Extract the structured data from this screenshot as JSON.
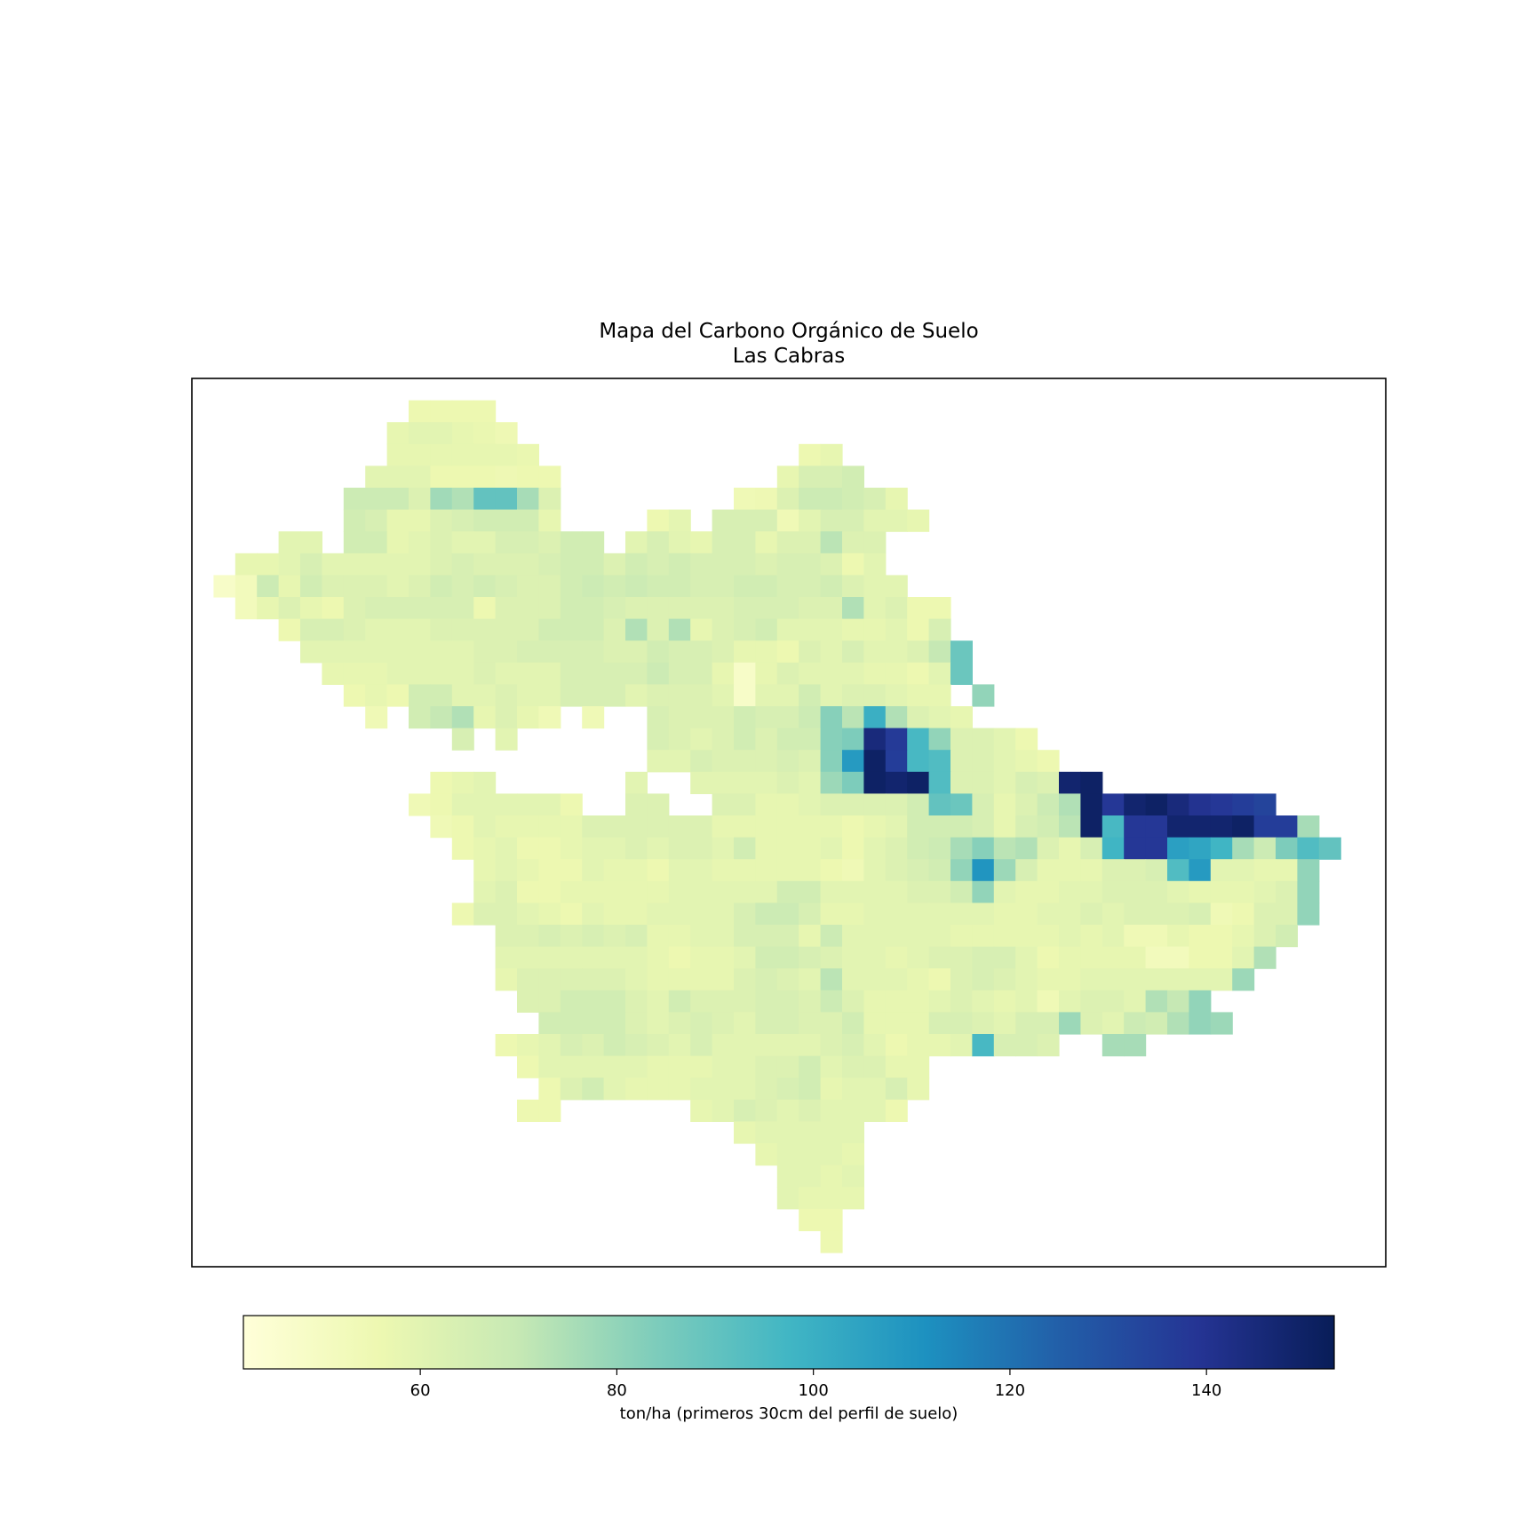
{
  "chart_data": {
    "type": "heatmap",
    "title": "Mapa del Carbono Orgánico de Suelo",
    "subtitle": "Las Cabras",
    "xlabel": "",
    "ylabel": "",
    "colormap": "YlGnBu",
    "colorbar": {
      "label": "ton/ha (primeros 30cm del perfil de suelo)",
      "orientation": "horizontal",
      "placement": "bottom",
      "range": [
        42,
        153
      ],
      "ticks": [
        60,
        80,
        100,
        120,
        140
      ],
      "tick_labels": [
        "60",
        "80",
        "100",
        "120",
        "140"
      ]
    },
    "grid": false,
    "nodata": "blank",
    "grid_shape": [
      40,
      53
    ],
    "rows": [
      "    .    .    .    .    .    .    .    .    .    .    .    .    .    .    .    .    .    .    .    .    .    .    .    .    .    .    .    .    .    .    .    .    .    .    .    .    .    .    .    .    .    .    .    .    .    .    .    .    .    .    .    .    .",
      "    .    .    .    .    .    .    .    .    .    .   56   56   56   56    .    .    .    .    .    .    .    .    .    .    .    .    .    .    .    .    .    .    .    .    .    .    .    .    .    .    .    .    .    .    .    .    .    .    .    .    .    .    .",
      "    .    .    .    .    .    .    .    .    .   58   60   60   58   57   55    .    .    .    .    .    .    .    .    .    .    .    .    .    .    .    .    .    .    .    .    .    .    .    .    .    .    .    .    .    .    .    .    .    .    .    .    .    .",
      "    .    .    .    .    .    .    .    .    .   58   58   58   58   58   58   57    .    .    .    .    .    .    .    .    .    .    .    .   56   58    .    .    .    .    .    .    .    .    .    .    .    .    .    .    .    .    .    .    .    .    .    .    .",
      "    .    .    .    .    .    .    .    .   60   60   60   56   56   56   55   56   56    .    .    .    .    .    .    .    .    .    .   58   64   64   66    .    .    .    .    .    .    .    .    .    .    .    .    .    .    .    .    .    .    .    .    .    .",
      "    .    .    .    .    .    .    .    68   68   68   62   77   74   90   90   76   62    .    .    .    .    .    .    .    .   54   55   62   68   68   66   64   58    .    .    .    .    .    .    .    .    .    .    .    .    .    .    .    .    .    .    .    .",
      "    .    .    .    .    .    .    .   66   64   58   58   62   64   66   66   66   58    .    .    .    .   56   59    .   64   64   64   54   60   64   64   60   60   58    .    .    .    .    .    .    .    .    .    .    .    .    .    .    .    .    .    .    .",
      "    .    .    .    .   60   60    .   66   66   58   60   62   60   60   64   64   62   66   66    .   60   64   60   58   64   64   58   62   62   72   62   62    .    .    .    .    .    .    .    .    .    .    .    .    .    .    .    .    .    .    .    .    .",
      "    .    .   58   58   60   64   60   60   60   60   60   62   64   62   62   62   64   66   66   62   66   64   66   64   64   64   62   64   64   62   56   60    .    .    .    .    .    .    .    .    .    .    .    .    .    .    .    .    .    .    .    .    .",
      "    .   48   52   68   58   66   62   62   62   60   62   66   64   66   64   62   62   66   68   66   68   66   66   64   64   66   66   64   64   66   62   60   60    .    .    .    .    .    .    .    .    .    .    .    .    .    .    .    .    .    .    .    .",
      "    .    .   52   58   62   58   56   62   64   64   64   64   64   56   62   62   62   66   66   64   62   62   62   62   62   64   64   64   62   62   74   60   62   56   56    .    .    .    .    .    .    .    .    .    .    .    .    .    .    .    .    .    .",
      "    .    .    .    .   56   64   64   62   60   60   60   62   62   62   62   62   66   66   66   62   74   62   74   58   62   64   66   60   60   60   58   58   60   56   64    .    .    .    .    .    .    .    .    .    .    .    .    .    .    .    .    .    .",
      "    .    .    .    .    .   60   60   60   60   60   60   60   60   62   62   64   64   64   64   62   62   66   64   64   62   58   58   56   62   60   64   60   60   62   70   88    .    .    .    .    .    .    .    .    .    .    .    .    .    .    .    .    .",
      "    .    .    .    .    .    .   58   58   58   60   60   60   60   62   60   60   60   64   64   64   64   68   64   64   58   48   58   62   60   60   60   58   58   56   60   88    .    .    .    .    .    .    .    .    .    .    .    .    .    .    .    .    .",
      "    .    .    .    .    .    .    .   56   58   56   66   66   60   60   62   60   60   64   64   64   60   62   62   62   60   48   60   60   66   60   62   62   60   58   58    .   80    .    .    .    .    .    .    .    .    .    .    .    .    .    .    .    .",
      "    .    .    .    .    .    .    .    .   54    .   66   70   74   58   62   58   54    .   54    .    .   64   62   62   62   66   64   64   68   82   72  100   74   62   60   58    .    .    .    .    .    .    .    .    .    .    .    .    .    .    .    .    .",
      "    .    .    .    .    .    .    .    .    .    .    .    .   64    .   60    .    .    .    .    .    .   64   62   60   62   66   62   66   66   82   84  145  137   96   80   62   62   60   56    .    .    .    .    .    .    .    .    .    .    .    .    .    .",
      "    .    .    .    .    .    .    .    .    .    .    .    .    .    .    .    .    .    .    .    .    .   60   60   64   62   62   62   64   62   82  108  150  136   96   94   62   62   60   58   56    .    .    .    .    .    .    .    .    .    .    .    .    .",
      "    .    .    .    .    .    .    .    .    .    .    .   56   58   60    .    .    .    .    .    .   60    .    .   60   60   60   60   62   60   78   84  150  148  150   94   62   62   60   64   62  148  150    .    .    .    .    .    .    .    .    .    .    .",
      "    .    .    .    .    .    .    .    .    .    .   54   56   60   60   60   60   60   56    .    .   62   62    .    .   62   62   58   58   60   62   62   62   62   66   90   88   64   58   62   68   74  150  138  148  150  145  140  138  136  134    .    .    .",
      "    .    .    .    .    .    .    .    .    .    .    .   54   56   60   58   58   58   58   62   62   62   62   62   62   58   58   58   58   58   58   56   58   60   66   66   66   64   58   64   66   72  150   96  138  138  148  148  148  150  136  136   76    .",
      "    .    .    .    .    .    .    .    .    .    .    .    .   56   58   60   56   56   58   60   60   62   60   62   62   60   66   58   58   58   60   56   60   62   66   68   76   82   72   74   62   58   64   98  138  138  106  104   98   76   68   84   94   90",
      "    .    .    .    .    .    .    .    .    .    .    .    .    .   58   60   58   56   56   60   58   58   56   60   60   58   58   58   58   58   56   54   60   62   64   66   80  110   78   64   58   58   58   62   62   64   94  108   60   60   58   58   80    .",
      "    .    .    .    .    .    .    .    .    .    .    .    .    .   60   62   56   56   58   58   58   58   58   60   60   60   60   60   66   66   60   60   60   60   62   62   66   80   60   58   58   60   60   62   62   62   60   58   58   58   60   62   80    .",
      "    .    .    .    .    .    .    .    .    .    .    .    .   56   62   62   60   58   56   60   58   58   60   60   60   60   64   68   68   64   58   58   60   60   60   60   60   60   58   58   60   60   62   60   62   62   62   64   54   56   62   62   80    .",
      "    .    .    .    .    .    .    .    .    .    .    .    .    .    .   62   62   64   62   64   62   64   58   58   60   60   64   64   64   58   68   60   60   60   60   60   58   58   58   58   58   60   58   60   54   54   58   56   56   58   62   66    .    .",
      "    .    .    .    .    .    .    .    .    .    .    .    .    .    .   60   60   60   60   60   60   60   58   56   58   58   60   66   66   64   62   60   60   58   60   62   62   64   64   60   56   58   58   58   58   52   52   56   56   60   74    .    .    .",
      "    .    .    .    .    .    .    .    .    .    .    .    .    .    .   58   62   62   62   62   62   60   58   58   58   58   62   64   62   60   72   60   60   60   58   56   62   64   62   60   58   58   60   60   60   60   60   60   60   78    .    .    .    .",
      "    .    .    .    .    .    .    .    .    .    .    .    .    .    .    .   62   62   66   66   66   62   60   66   62   62   62   64   64   62   68   62   58   58   58   60   62   60   58   60   54   60   62   62   60   74   70   80    .    .    .    .    .    .",
      "    .    .    .    .    .    .    .    .    .    .    .    .    .    .    .    .   66   66   66   66   62   60   62   64   62   60   64   64   62   62   66   58   58   58   64   64   62   60   64   64   78   62   60   68   66   74   80   78    .    .    .    .    .",
      "    .    .    .    .    .    .    .    .    .    .    .    .    .    .   56   58   60   64   62   66   64   62   60   64   60   60   60   60   60   62   64   60   56   58   58   60   96   64   64   62    .    .   76   76    .    .    .    .    .    .    .    .    .",
      "    .    .    .    .    .    .    .    .    .    .    .    .    .    .    .   56   60   60   60   60   60   58   58   58   60   60   62   62   66   60   62   62   58   58    .    .    .    .    .    .    .    .    .    .    .    .    .    .    .    .    .    .    .",
      "    .    .    .    .    .    .    .    .    .    .    .    .    .    .    .    .   56   62   66   60   58   58   58   60   60   60   62   64   66   58   60   60   64   58    .    .    .    .    .    .    .    .    .    .    .    .    .    .    .    .    .    .    .",
      "    .    .    .    .    .    .    .    .    .    .    .    .    .    .    .   56   56    .    .    .    .    .    .   58   60   64   62   60   62   60   60   60   56    .    .    .    .    .    .    .    .    .    .    .    .    .    .    .    .    .    .    .    .",
      "    .    .    .    .    .    .    .    .    .    .    .    .    .    .    .    .    .    .    .    .    .    .    .    .    .   58   60   60   60   60   60    .    .    .    .    .    .    .    .    .    .    .    .    .    .    .    .    .    .    .    .    .    .",
      "    .    .    .    .    .    .    .    .    .    .    .    .    .    .    .    .    .    .    .    .    .    .    .    .    .    .   58   60   60   60   58    .    .    .    .    .    .    .    .    .    .    .    .    .    .    .    .    .    .    .    .    .    .",
      "    .    .    .    .    .    .    .    .    .    .    .    .    .    .    .    .    .    .    .    .    .    .    .    .    .    .    .   60   60   58   60    .    .    .    .    .    .    .    .    .    .    .    .    .    .    .    .    .    .    .    .    .    .",
      "    .    .    .    .    .    .    .    .    .    .    .    .    .    .    .    .    .    .    .    .    .    .    .    .    .    .    .   60   58   58   58    .    .    .    .    .    .    .    .    .    .    .    .    .    .    .    .    .    .    .    .    .    .",
      "    .    .    .    .    .    .    .    .    .    .    .    .    .    .    .    .    .    .    .    .    .    .    .    .    .    .    .    .   56   56    .    .    .    .    .    .    .    .    .    .    .    .    .    .    .    .    .    .    .    .    .    .    .",
      "    .    .    .    .    .    .    .    .    .    .    .    .    .    .    .    .    .    .    .    .    .    .    .    .    .    .    .    .    .   56    .    .    .    .    .    .    .    .    .    .    .    .    .    .    .    .    .    .    .    .    .    .    ."
    ]
  }
}
